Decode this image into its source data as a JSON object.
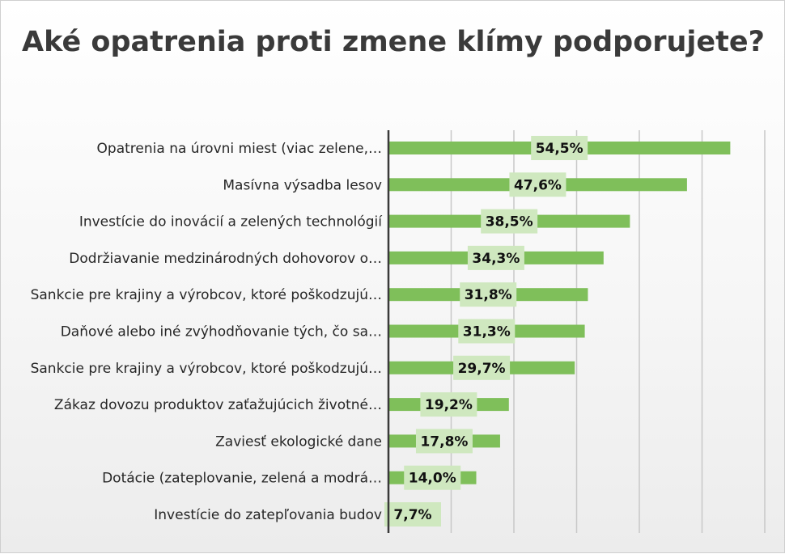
{
  "chart_data": {
    "type": "bar",
    "orientation": "horizontal",
    "title": "Aké opatrenia proti zmene klímy podporujete?",
    "categories": [
      "Opatrenia na úrovni miest (viac zelene,…",
      "Masívna výsadba lesov",
      "Investície do inovácií a zelených technológií",
      "Dodržiavanie medzinárodných dohovorov o…",
      "Sankcie pre krajiny a výrobcov, ktoré poškodzujú…",
      "Daňové alebo iné zvýhodňovanie tých, čo sa…",
      "Sankcie pre krajiny a výrobcov, ktoré poškodzujú…",
      "Zákaz dovozu produktov zaťažujúcich životné…",
      "Zaviesť ekologické dane",
      "Dotácie (zateplovanie, zelená a modrá…",
      "Investície do zatepľovania budov"
    ],
    "values": [
      54.5,
      47.6,
      38.5,
      34.3,
      31.8,
      31.3,
      29.7,
      19.2,
      17.8,
      14.0,
      7.7
    ],
    "value_labels": [
      "54,5%",
      "47,6%",
      "38,5%",
      "34,3%",
      "31,8%",
      "31,3%",
      "29,7%",
      "19,2%",
      "17,8%",
      "14,0%",
      "7,7%"
    ],
    "xlim": [
      0,
      60
    ],
    "grid": true,
    "legend": "none",
    "bar_color": "#7fbf5a",
    "label_bg_color": "#cfe8bf"
  }
}
